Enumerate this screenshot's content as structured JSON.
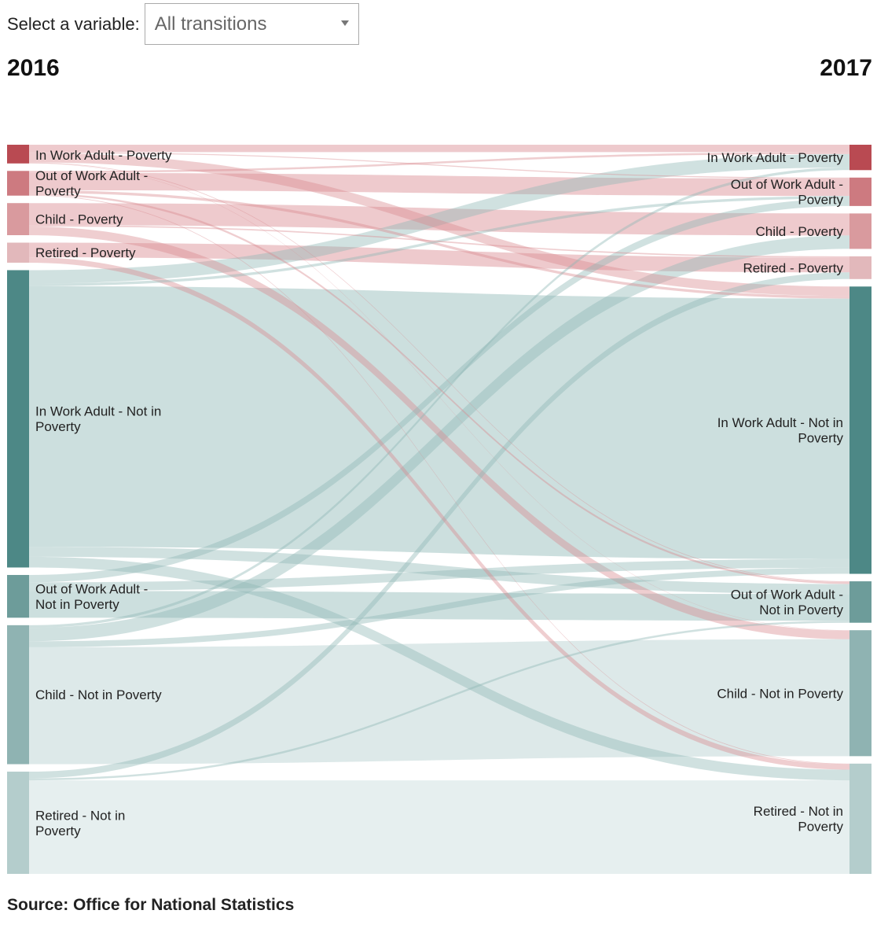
{
  "controls": {
    "label": "Select a variable:",
    "selected": "All transitions"
  },
  "years": {
    "left": "2016",
    "right": "2017"
  },
  "source": "Source: Office for National Statistics",
  "chart_data": {
    "type": "sankey",
    "title": "",
    "nodes_left": [
      {
        "id": "iwp",
        "label": [
          "In Work Adult - Poverty"
        ],
        "color": "#b94a52"
      },
      {
        "id": "owp",
        "label": [
          "Out of Work Adult -",
          "Poverty"
        ],
        "color": "#cd7a80"
      },
      {
        "id": "cp",
        "label": [
          "Child - Poverty"
        ],
        "color": "#d99a9e"
      },
      {
        "id": "rp",
        "label": [
          "Retired - Poverty"
        ],
        "color": "#e2b8bb"
      },
      {
        "id": "iwn",
        "label": [
          "In Work Adult - Not in",
          "Poverty"
        ],
        "color": "#4d8886"
      },
      {
        "id": "own",
        "label": [
          "Out of Work Adult -",
          "Not in Poverty"
        ],
        "color": "#6d9c9a"
      },
      {
        "id": "cn",
        "label": [
          "Child - Not in Poverty"
        ],
        "color": "#8fb3b2"
      },
      {
        "id": "rn",
        "label": [
          "Retired - Not in",
          "Poverty"
        ],
        "color": "#b4cdcc"
      }
    ],
    "nodes_right": [
      {
        "id": "iwp",
        "label": [
          "In Work Adult - Poverty"
        ],
        "color": "#b94a52"
      },
      {
        "id": "owp",
        "label": [
          "Out of Work Adult -",
          "Poverty"
        ],
        "color": "#cd7a80"
      },
      {
        "id": "cp",
        "label": [
          "Child - Poverty"
        ],
        "color": "#d99a9e"
      },
      {
        "id": "rp",
        "label": [
          "Retired - Poverty"
        ],
        "color": "#e2b8bb"
      },
      {
        "id": "iwn",
        "label": [
          "In Work Adult - Not in",
          "Poverty"
        ],
        "color": "#4d8886"
      },
      {
        "id": "own",
        "label": [
          "Out of Work Adult -",
          "Not in Poverty"
        ],
        "color": "#6d9c9a"
      },
      {
        "id": "cn",
        "label": [
          "Child - Not in Poverty"
        ],
        "color": "#8fb3b2"
      },
      {
        "id": "rn",
        "label": [
          "Retired - Not in",
          "Poverty"
        ],
        "color": "#b4cdcc"
      }
    ],
    "flows": [
      {
        "from": "iwp",
        "to": "iwp",
        "value": 1.1
      },
      {
        "from": "iwp",
        "to": "owp",
        "value": 0.15
      },
      {
        "from": "iwp",
        "to": "iwn",
        "value": 1.4
      },
      {
        "from": "iwp",
        "to": "own",
        "value": 0.1
      },
      {
        "from": "iwp",
        "to": "cn",
        "value": 0.05
      },
      {
        "from": "owp",
        "to": "owp",
        "value": 2.6
      },
      {
        "from": "owp",
        "to": "iwp",
        "value": 0.3
      },
      {
        "from": "owp",
        "to": "iwn",
        "value": 0.4
      },
      {
        "from": "owp",
        "to": "own",
        "value": 0.3
      },
      {
        "from": "owp",
        "to": "rn",
        "value": 0.1
      },
      {
        "from": "cp",
        "to": "cp",
        "value": 3.3
      },
      {
        "from": "cp",
        "to": "rp",
        "value": 0.2
      },
      {
        "from": "cp",
        "to": "cn",
        "value": 1.3
      },
      {
        "from": "rp",
        "to": "rp",
        "value": 2.2
      },
      {
        "from": "rp",
        "to": "rn",
        "value": 0.8
      },
      {
        "from": "iwn",
        "to": "iwp",
        "value": 2.0
      },
      {
        "from": "iwn",
        "to": "owp",
        "value": 0.4
      },
      {
        "from": "iwn",
        "to": "iwn",
        "value": 39.0
      },
      {
        "from": "iwn",
        "to": "own",
        "value": 1.5
      },
      {
        "from": "iwn",
        "to": "rn",
        "value": 1.6
      },
      {
        "from": "own",
        "to": "owp",
        "value": 1.1
      },
      {
        "from": "own",
        "to": "iwn",
        "value": 1.3
      },
      {
        "from": "own",
        "to": "own",
        "value": 4.0
      },
      {
        "from": "cn",
        "to": "iwp",
        "value": 0.4
      },
      {
        "from": "cn",
        "to": "cp",
        "value": 2.0
      },
      {
        "from": "cn",
        "to": "iwn",
        "value": 0.9
      },
      {
        "from": "cn",
        "to": "cn",
        "value": 17.5
      },
      {
        "from": "rn",
        "to": "rp",
        "value": 1.0
      },
      {
        "from": "rn",
        "to": "own",
        "value": 0.3
      },
      {
        "from": "rn",
        "to": "rn",
        "value": 14.0
      }
    ]
  }
}
